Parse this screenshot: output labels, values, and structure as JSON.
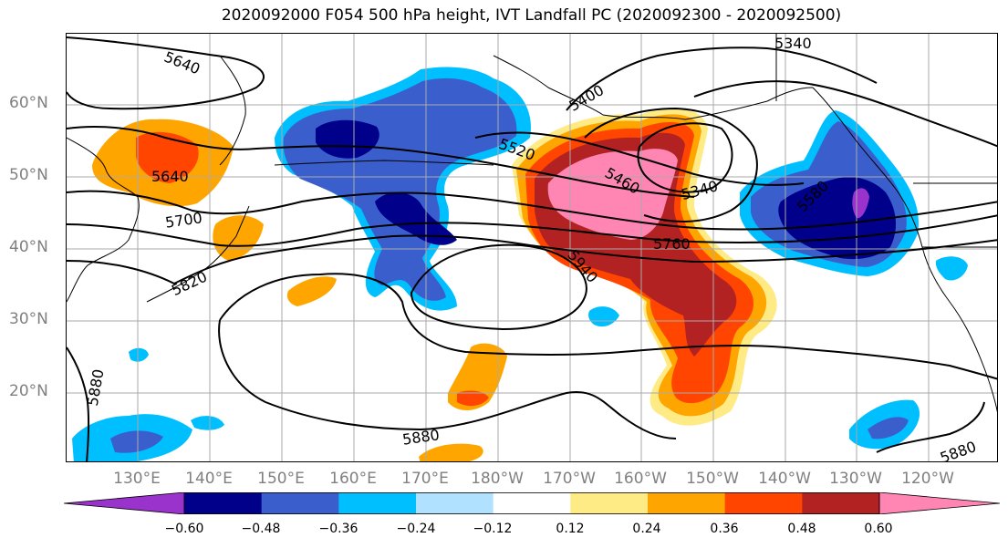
{
  "title": "2020092000 F054 500 hPa height, IVT Landfall PC (2020092300 - 2020092500)",
  "map": {
    "lat_labels": [
      "60°N",
      "50°N",
      "40°N",
      "30°N",
      "20°N"
    ],
    "lon_labels": [
      "130°E",
      "140°E",
      "150°E",
      "160°E",
      "170°E",
      "180°W",
      "170°W",
      "160°W",
      "150°W",
      "140°W",
      "130°W",
      "120°W"
    ],
    "contour_labels": [
      "5640",
      "5640",
      "5700",
      "5820",
      "5880",
      "5880",
      "5880",
      "5400",
      "5520",
      "5460",
      "5340",
      "5340",
      "5580",
      "5760",
      "5940"
    ]
  },
  "colorbar": {
    "colors": [
      "#9933cc",
      "#00008b",
      "#3a5fcd",
      "#00bfff",
      "#b0e2ff",
      "#ffffff",
      "#ffeb85",
      "#ffa500",
      "#ff4500",
      "#b22222",
      "#ff85b3"
    ],
    "tick_labels": [
      "−0.60",
      "−0.48",
      "−0.36",
      "−0.24",
      "−0.12",
      "0.12",
      "0.24",
      "0.36",
      "0.48",
      "0.60"
    ]
  }
}
